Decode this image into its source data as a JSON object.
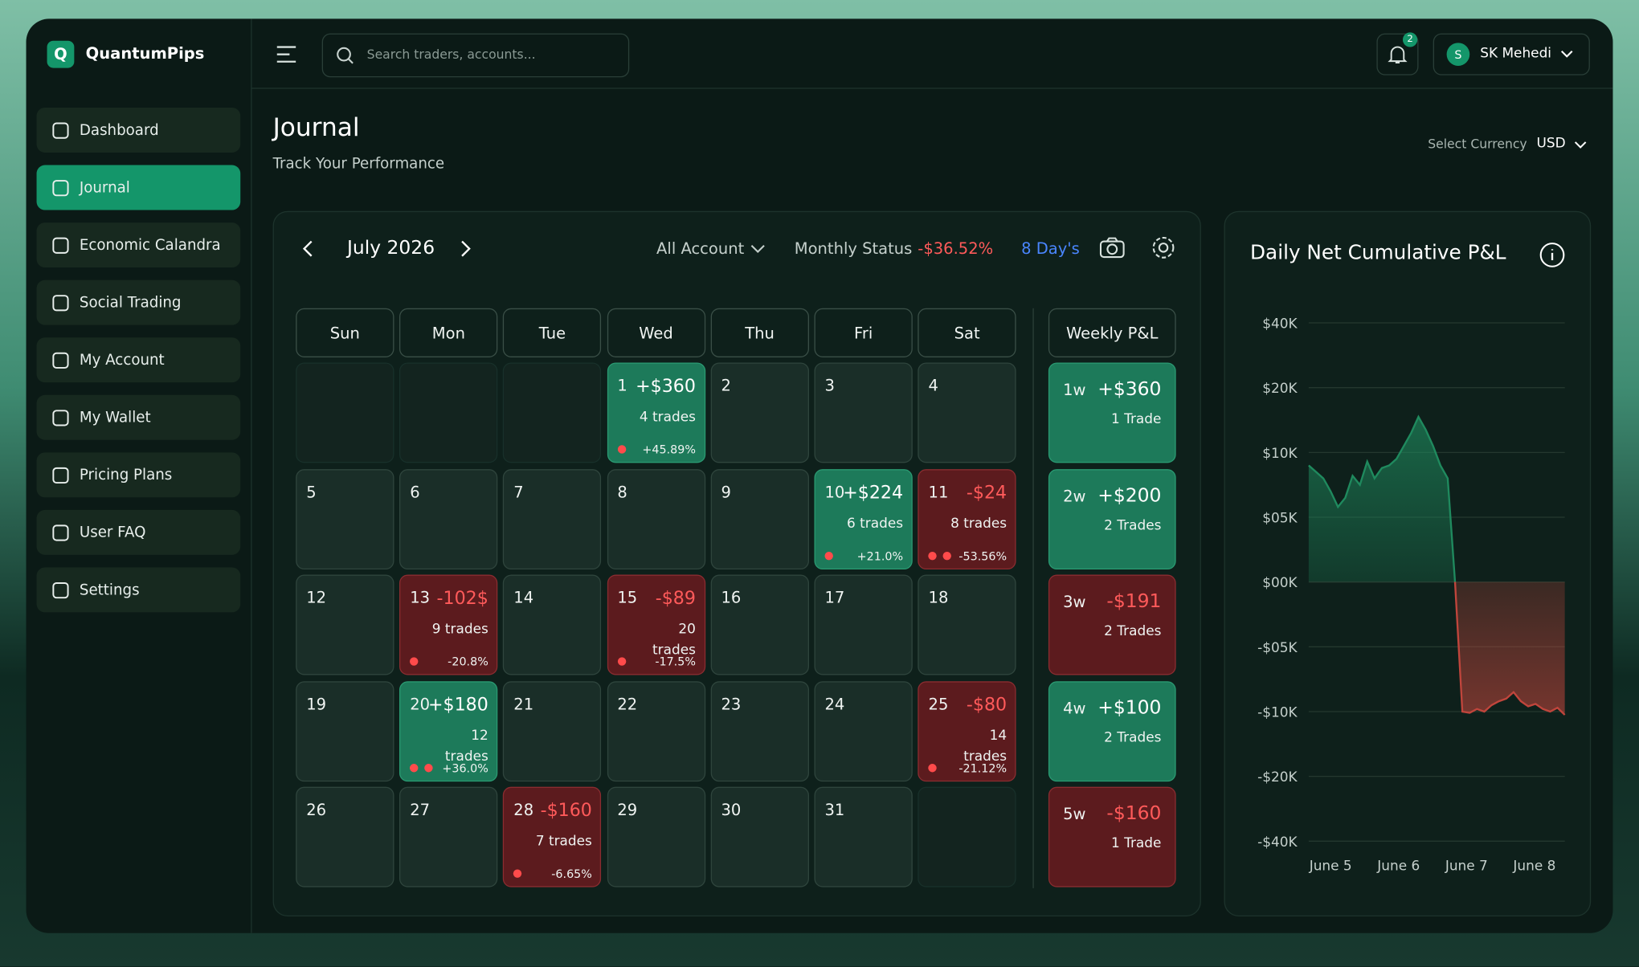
{
  "header": {
    "brand": "QuantumPips",
    "brand_initial": "Q",
    "search_placeholder": "Search traders, accounts...",
    "notifications": "2",
    "user_initial": "S",
    "user_name": "SK Mehedi"
  },
  "nav": {
    "active": 1,
    "items": [
      "Dashboard",
      "Journal",
      "Economic Calandra",
      "Social Trading",
      "My Account",
      "My Wallet",
      "Pricing Plans",
      "User FAQ",
      "Settings"
    ]
  },
  "page": {
    "title": "Journal",
    "subtitle": "Track Your Performance",
    "currency_label": "Select Currency",
    "currency": "USD"
  },
  "calendar": {
    "month": "July 2026",
    "account": "All Account",
    "status_label": "Monthly Status",
    "status_value": "-$36.52%",
    "days_label": "8 Day's",
    "weekdays": [
      "Sun",
      "Mon",
      "Tue",
      "Wed",
      "Thu",
      "Fri",
      "Sat"
    ],
    "weekly_header": "Weekly P&L",
    "cells": [
      {
        "day": null
      },
      {
        "day": null
      },
      {
        "day": null
      },
      {
        "day": 1,
        "pnl": "+$360",
        "trades": "4 trades",
        "pct": "+45.89%",
        "dots": 1,
        "tone": "green"
      },
      {
        "day": 2
      },
      {
        "day": 3
      },
      {
        "day": 4
      },
      {
        "day": 5
      },
      {
        "day": 6
      },
      {
        "day": 7
      },
      {
        "day": 8
      },
      {
        "day": 9
      },
      {
        "day": 10,
        "pnl": "+$224",
        "trades": "6 trades",
        "pct": "+21.0%",
        "dots": 1,
        "tone": "green"
      },
      {
        "day": 11,
        "pnl": "-$24",
        "trades": "8 trades",
        "pct": "-53.56%",
        "dots": 2,
        "tone": "red"
      },
      {
        "day": 12
      },
      {
        "day": 13,
        "pnl": "-102$",
        "trades": "9 trades",
        "pct": "-20.8%",
        "dots": 1,
        "tone": "red"
      },
      {
        "day": 14
      },
      {
        "day": 15,
        "pnl": "-$89",
        "trades": "20 trades",
        "pct": "-17.5%",
        "dots": 1,
        "tone": "red"
      },
      {
        "day": 16
      },
      {
        "day": 17
      },
      {
        "day": 18
      },
      {
        "day": 19
      },
      {
        "day": 20,
        "pnl": "+$180",
        "trades": "12 trades",
        "pct": "+36.0%",
        "dots": 2,
        "tone": "green"
      },
      {
        "day": 21
      },
      {
        "day": 22
      },
      {
        "day": 23
      },
      {
        "day": 24
      },
      {
        "day": 25,
        "pnl": "-$80",
        "trades": "14 trades",
        "pct": "-21.12%",
        "dots": 1,
        "tone": "red"
      },
      {
        "day": 26
      },
      {
        "day": 27
      },
      {
        "day": 28,
        "pnl": "-$160",
        "trades": "7 trades",
        "pct": "-6.65%",
        "dots": 1,
        "tone": "red"
      },
      {
        "day": 29
      },
      {
        "day": 30
      },
      {
        "day": 31
      },
      {
        "day": null
      }
    ],
    "weeks": [
      {
        "label": "1w",
        "pnl": "+$360",
        "trades": "1 Trade",
        "tone": "green"
      },
      {
        "label": "2w",
        "pnl": "+$200",
        "trades": "2 Trades",
        "tone": "green"
      },
      {
        "label": "3w",
        "pnl": "-$191",
        "trades": "2 Trades",
        "tone": "red"
      },
      {
        "label": "4w",
        "pnl": "+$100",
        "trades": "2 Trades",
        "tone": "green"
      },
      {
        "label": "5w",
        "pnl": "-$160",
        "trades": "1 Trade",
        "tone": "red"
      }
    ]
  },
  "chart_data": {
    "type": "area",
    "title": "Daily Net Cumulative P&L",
    "xticks": [
      "June 5",
      "June 6",
      "June 7",
      "June 8"
    ],
    "yticks": [
      {
        "value": 40000,
        "label": "$40K"
      },
      {
        "value": 20000,
        "label": "$20K"
      },
      {
        "value": 10000,
        "label": "$10K"
      },
      {
        "value": 5000,
        "label": "$05K"
      },
      {
        "value": 0,
        "label": "$00K"
      },
      {
        "value": -5000,
        "label": "-$05K"
      },
      {
        "value": -10000,
        "label": "-$10K"
      },
      {
        "value": -20000,
        "label": "-$20K"
      },
      {
        "value": -40000,
        "label": "-$40K"
      }
    ],
    "ylim": [
      -40000,
      40000
    ],
    "grid": true,
    "positive_color": "#1f8a5e",
    "negative_color": "#c0453c",
    "values": [
      9000,
      8500,
      8000,
      7000,
      5800,
      6500,
      8200,
      7500,
      9300,
      8000,
      8800,
      9000,
      9500,
      11000,
      13000,
      15500,
      13500,
      11000,
      9000,
      8000,
      0,
      -10000,
      -10200,
      -9800,
      -10000,
      -9500,
      -9200,
      -9000,
      -8500,
      -9200,
      -9600,
      -9400,
      -9800,
      -10000,
      -9700,
      -10500
    ]
  }
}
